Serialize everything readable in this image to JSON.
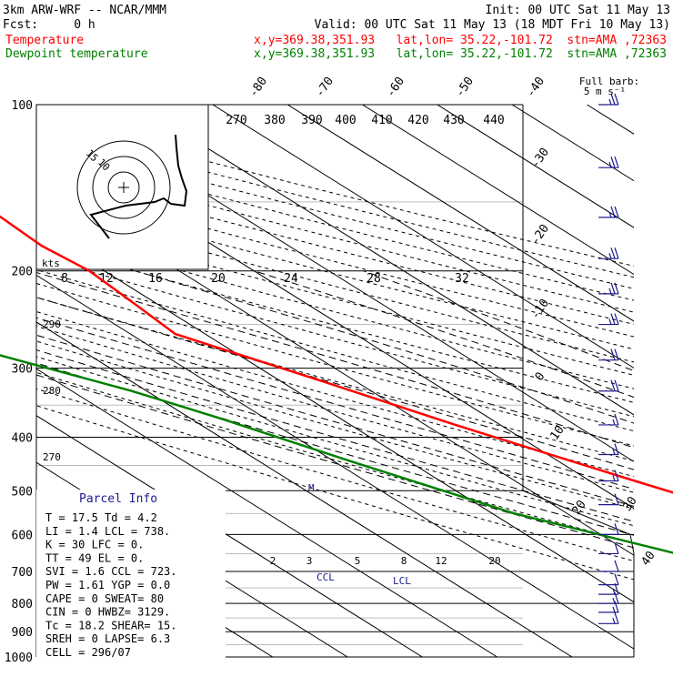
{
  "header": {
    "line1_left": "3km ARW-WRF -- NCAR/MMM",
    "line1_right": "Init: 00 UTC Sat 11 May 13",
    "line2_left": "Fcst:     0 h",
    "line2_right": "Valid: 00 UTC Sat 11 May 13 (18 MDT Fri 10 May 13)",
    "temp_label": "Temperature",
    "dew_label": "Dewpoint temperature",
    "temp_loc": "x,y=369.38,351.93   lat,lon= 35.22,-101.72  stn=AMA ,72363",
    "dew_loc": "x,y=369.38,351.93   lat,lon= 35.22,-101.72  stn=AMA ,72363"
  },
  "colors": {
    "temperature": "#ff0000",
    "dewpoint": "#008000",
    "wind_barbs": "#1a1a8c",
    "hodograph": "#000000",
    "grid": "#000000",
    "parcel_title": "#1a1a8c"
  },
  "barb_legend": {
    "line1": "Full barb:",
    "line2": "5 m s⁻¹"
  },
  "hodograph": {
    "kts_label": "kts",
    "ring_labels": [
      "15",
      "10"
    ],
    "speed_ticks": [
      "8",
      "12",
      "16",
      "20",
      "24",
      "28",
      "32"
    ],
    "trace_uv": [
      [
        12,
        -11
      ],
      [
        2,
        -6
      ],
      [
        9,
        -2
      ],
      [
        10,
        0
      ],
      [
        11,
        2
      ],
      [
        12,
        3
      ],
      [
        13,
        5
      ],
      [
        12,
        8
      ],
      [
        11,
        14
      ],
      [
        11,
        18
      ],
      [
        12,
        22
      ],
      [
        12,
        28
      ]
    ]
  },
  "mixing_ratio_labels": [
    "2",
    "3",
    "5",
    "8",
    "12",
    "20"
  ],
  "theta_top_labels": [
    "270",
    "380",
    "390",
    "400",
    "410",
    "420",
    "430",
    "440"
  ],
  "theta_left_labels": [
    "290",
    "280",
    "270"
  ],
  "annotations": {
    "ccl": "CCL",
    "lcl": "LCL",
    "m": "M"
  },
  "parcel_info": {
    "title": "Parcel Info",
    "rows": [
      "T  =    17.5  Td =   4.2",
      "LI =     1.4  LCL =  738.",
      "K  =      30  LFC =    0.",
      "TT =      49  EL  =    0.",
      "SVI =    1.6  CCL =  723.",
      "PW =    1.61  YGP =   0.0",
      "CAPE =     0  SWEAT=  80",
      "CIN =      0  HWBZ= 3129.",
      "Tc =    18.2  SHEAR=  15.",
      "SREH =     0  LAPSE=  6.3",
      "CELL = 296/07"
    ]
  },
  "chart_data": {
    "type": "line",
    "title": "",
    "xlabel": "",
    "ylabel": "",
    "y_scale": "log",
    "ylim": [
      1000,
      100
    ],
    "pressure_ticks": [
      100,
      200,
      300,
      400,
      500,
      600,
      700,
      800,
      900,
      1000
    ],
    "pressure_tick_labels": [
      "100",
      "200",
      "300",
      "400",
      "500",
      "600",
      "700",
      "800",
      "900",
      "1000"
    ],
    "isotherm_labels": [
      "-80",
      "-70",
      "-60",
      "-50",
      "-40",
      "-30",
      "-20",
      "-10",
      "0",
      "10",
      "20",
      "30",
      "40"
    ],
    "series": [
      {
        "name": "Temperature",
        "points": [
          [
            -59,
            100
          ],
          [
            -54,
            120
          ],
          [
            -52,
            150
          ],
          [
            -53,
            180
          ],
          [
            -52,
            200
          ],
          [
            -53,
            230
          ],
          [
            -54,
            260
          ],
          [
            -44,
            320
          ],
          [
            -36,
            380
          ],
          [
            -24,
            480
          ],
          [
            -12,
            600
          ],
          [
            -7,
            700
          ],
          [
            -2,
            730
          ],
          [
            4,
            770
          ],
          [
            10,
            820
          ],
          [
            15,
            860
          ],
          [
            19,
            900
          ]
        ]
      },
      {
        "name": "Dewpoint temperature",
        "points": [
          [
            -86,
            100
          ],
          [
            -88,
            140
          ],
          [
            -85,
            160
          ],
          [
            -86,
            180
          ],
          [
            -88,
            200
          ],
          [
            -87,
            240
          ],
          [
            -83,
            280
          ],
          [
            -72,
            330
          ],
          [
            -66,
            370
          ],
          [
            -58,
            440
          ],
          [
            -47,
            550
          ],
          [
            -34,
            650
          ],
          [
            -23,
            690
          ],
          [
            -10,
            730
          ],
          [
            -6,
            760
          ],
          [
            -3,
            790
          ],
          [
            -3,
            820
          ],
          [
            -6,
            860
          ],
          [
            -8,
            900
          ]
        ]
      }
    ],
    "wind_barbs": {
      "units": "m/s",
      "levels": [
        {
          "p": 100,
          "spd": 25,
          "dir": 250
        },
        {
          "p": 130,
          "spd": 25,
          "dir": 250
        },
        {
          "p": 160,
          "spd": 25,
          "dir": 250
        },
        {
          "p": 190,
          "spd": 25,
          "dir": 250
        },
        {
          "p": 220,
          "spd": 25,
          "dir": 250
        },
        {
          "p": 250,
          "spd": 25,
          "dir": 250
        },
        {
          "p": 290,
          "spd": 20,
          "dir": 250
        },
        {
          "p": 330,
          "spd": 20,
          "dir": 250
        },
        {
          "p": 380,
          "spd": 15,
          "dir": 250
        },
        {
          "p": 430,
          "spd": 15,
          "dir": 250
        },
        {
          "p": 480,
          "spd": 15,
          "dir": 250
        },
        {
          "p": 530,
          "spd": 10,
          "dir": 250
        },
        {
          "p": 600,
          "spd": 10,
          "dir": 200
        },
        {
          "p": 650,
          "spd": 10,
          "dir": 200
        },
        {
          "p": 700,
          "spd": 10,
          "dir": 180
        },
        {
          "p": 740,
          "spd": 10,
          "dir": 170
        },
        {
          "p": 770,
          "spd": 15,
          "dir": 150
        },
        {
          "p": 800,
          "spd": 15,
          "dir": 150
        },
        {
          "p": 830,
          "spd": 15,
          "dir": 150
        },
        {
          "p": 870,
          "spd": 15,
          "dir": 150
        }
      ]
    }
  }
}
